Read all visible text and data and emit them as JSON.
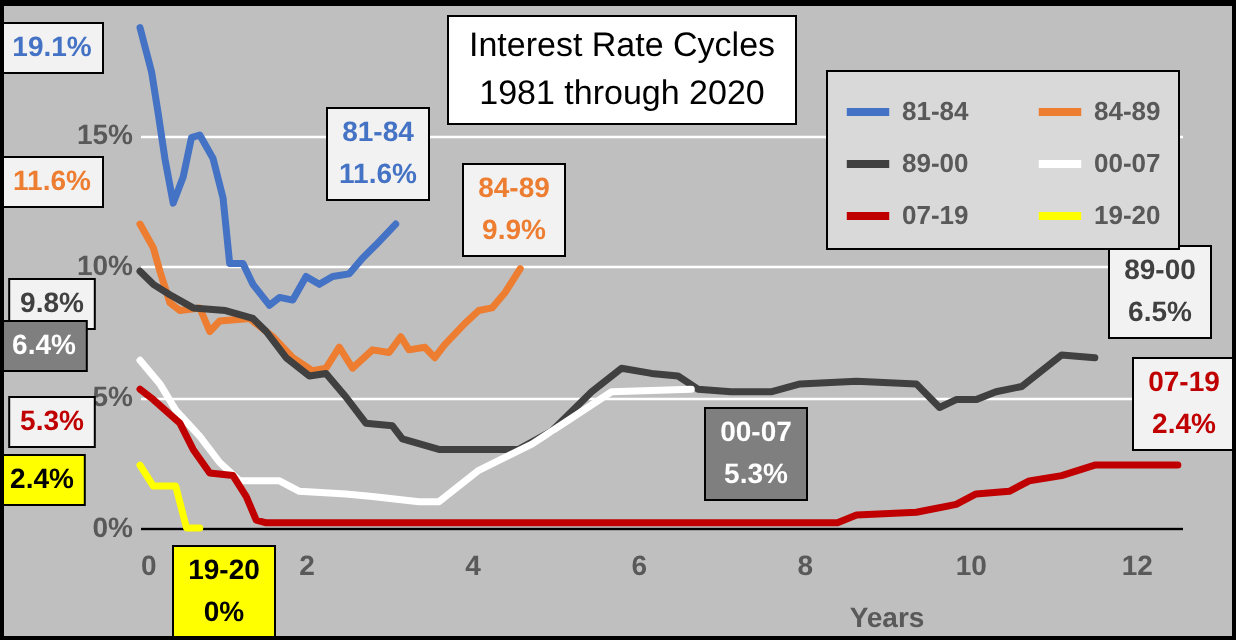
{
  "chart_data": {
    "type": "line",
    "title": "Interest Rate Cycles",
    "subtitle": "1981 through 2020",
    "xlabel": "Years",
    "xlim": [
      0,
      12.55
    ],
    "xticks": [
      0,
      2,
      4,
      6,
      8,
      10,
      12
    ],
    "ylim": [
      0,
      20
    ],
    "yticks": [
      {
        "value": 0,
        "label": "0%"
      },
      {
        "value": 5,
        "label": "5%"
      },
      {
        "value": 10,
        "label": "10%"
      },
      {
        "value": 15,
        "label": "15%"
      }
    ],
    "grid": "y",
    "legend": "top right",
    "line_style": "solid",
    "series": [
      {
        "name": "81-84",
        "color": "#4472c4",
        "x": [
          0,
          0.14,
          0.22,
          0.3,
          0.4,
          0.52,
          0.62,
          0.72,
          0.88,
          1.0,
          1.08,
          1.24,
          1.36,
          1.56,
          1.68,
          1.84,
          2.0,
          2.16,
          2.32,
          2.52,
          2.68,
          2.84,
          3.08
        ],
        "values": [
          19.1,
          17.4,
          15.8,
          14.1,
          12.4,
          13.4,
          14.9,
          15.0,
          14.1,
          12.6,
          10.1,
          10.1,
          9.3,
          8.5,
          8.8,
          8.7,
          9.6,
          9.3,
          9.6,
          9.7,
          10.3,
          10.8,
          11.6
        ]
      },
      {
        "name": "84-89",
        "color": "#ed7d31",
        "x": [
          0,
          0.16,
          0.24,
          0.36,
          0.48,
          0.72,
          0.84,
          0.96,
          1.32,
          1.6,
          1.84,
          2.08,
          2.24,
          2.4,
          2.56,
          2.8,
          3.0,
          3.14,
          3.24,
          3.43,
          3.55,
          3.67,
          3.91,
          4.08,
          4.24,
          4.4,
          4.58
        ],
        "values": [
          11.6,
          10.7,
          9.8,
          8.6,
          8.3,
          8.4,
          7.5,
          7.9,
          8.0,
          7.3,
          6.5,
          6.0,
          6.1,
          6.9,
          6.1,
          6.8,
          6.7,
          7.3,
          6.8,
          6.9,
          6.5,
          7.0,
          7.8,
          8.3,
          8.4,
          9.0,
          9.9
        ]
      },
      {
        "name": "89-00",
        "color": "#404040",
        "x": [
          0,
          0.16,
          0.36,
          0.64,
          1.03,
          1.36,
          1.52,
          1.76,
          2.04,
          2.24,
          2.48,
          2.72,
          3.04,
          3.16,
          3.6,
          4.08,
          4.56,
          4.96,
          5.44,
          5.8,
          6.16,
          6.48,
          6.72,
          7.12,
          7.6,
          7.95,
          8.63,
          9.35,
          9.63,
          9.83,
          10.07,
          10.31,
          10.62,
          10.86,
          11.1,
          11.5
        ],
        "values": [
          9.8,
          9.3,
          8.9,
          8.4,
          8.3,
          8.0,
          7.5,
          6.5,
          5.8,
          5.9,
          5.0,
          4.0,
          3.9,
          3.4,
          3.0,
          3.0,
          3.0,
          3.7,
          5.2,
          6.1,
          5.9,
          5.8,
          5.3,
          5.2,
          5.2,
          5.5,
          5.6,
          5.5,
          4.6,
          4.9,
          4.9,
          5.2,
          5.4,
          6.0,
          6.6,
          6.5
        ]
      },
      {
        "name": "00-07",
        "color": "#ffffff",
        "x": [
          0,
          0.24,
          0.43,
          0.72,
          0.96,
          1.2,
          1.68,
          1.92,
          2.48,
          2.8,
          3.36,
          3.6,
          4.08,
          4.72,
          5.2,
          5.68,
          6.64
        ],
        "values": [
          6.4,
          5.5,
          4.5,
          3.5,
          2.5,
          1.8,
          1.8,
          1.4,
          1.3,
          1.2,
          1.0,
          1.0,
          2.2,
          3.2,
          4.2,
          5.2,
          5.3
        ]
      },
      {
        "name": "07-19",
        "color": "#c00000",
        "x": [
          0,
          0.16,
          0.48,
          0.64,
          0.84,
          1.12,
          1.28,
          1.4,
          1.52,
          8.4,
          8.63,
          9.35,
          9.83,
          10.07,
          10.47,
          10.71,
          11.1,
          11.5,
          12.5
        ],
        "values": [
          5.3,
          4.9,
          4.0,
          3.0,
          2.1,
          2.0,
          1.2,
          0.3,
          0.2,
          0.2,
          0.5,
          0.6,
          0.9,
          1.3,
          1.4,
          1.8,
          2.0,
          2.4,
          2.4
        ]
      },
      {
        "name": "19-20",
        "color": "#ffff00",
        "x": [
          0,
          0.16,
          0.43,
          0.56,
          0.72
        ],
        "values": [
          2.4,
          1.6,
          1.6,
          0,
          0
        ]
      }
    ],
    "annotations": [
      {
        "text": "19.1%",
        "x": 0,
        "y": 19.1
      },
      {
        "text": "81-84\n11.6%",
        "x": 3.08,
        "y": 11.6
      },
      {
        "text": "11.6%",
        "x": 0,
        "y": 11.6
      },
      {
        "text": "84-89\n9.9%",
        "x": 4.58,
        "y": 9.9
      },
      {
        "text": "9.8%",
        "x": 0,
        "y": 9.8
      },
      {
        "text": "6.4%",
        "x": 0,
        "y": 6.4
      },
      {
        "text": "5.3%",
        "x": 0,
        "y": 5.3
      },
      {
        "text": "2.4%",
        "x": 0,
        "y": 2.4
      },
      {
        "text": "19-20\n0%",
        "x": 0.72,
        "y": 0
      },
      {
        "text": "00-07\n5.3%",
        "x": 6.64,
        "y": 5.3
      },
      {
        "text": "89-00\n6.5%",
        "x": 11.5,
        "y": 6.5
      },
      {
        "text": "07-19\n2.4%",
        "x": 12.5,
        "y": 2.4
      }
    ]
  }
}
